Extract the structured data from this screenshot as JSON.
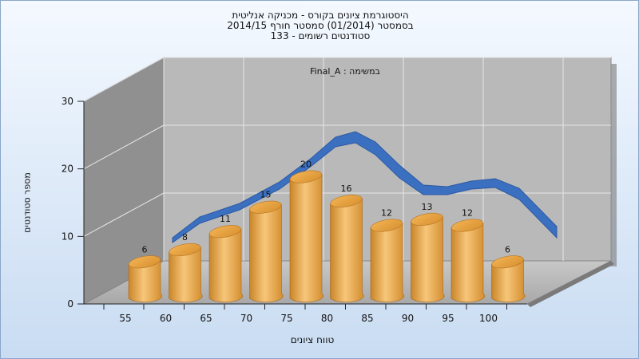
{
  "chart_data": {
    "type": "bar",
    "title_lines": [
      "היסטוגרמת ציונים בקורס - מכניקה אנליטית",
      "בסמסטר  (01/2014)  סמסטר חורף 2014/15",
      "סטודנטים רשומים - 133"
    ],
    "inner_label": "במשימה : Final_A",
    "xlabel": "טווח ציונים",
    "ylabel": "מספר סטודנטים",
    "categories": [
      "55",
      "60",
      "65",
      "70",
      "75",
      "80",
      "85",
      "90",
      "95",
      "100"
    ],
    "values": [
      6,
      8,
      11,
      15,
      20,
      16,
      12,
      13,
      12,
      6
    ],
    "ylim": [
      0,
      30
    ],
    "yticks": [
      0,
      10,
      20,
      30
    ],
    "grid": true,
    "colors": {
      "bar": "#e3a14a",
      "curve": "#3b6fc0",
      "back_wall": "#b8b8b8",
      "side_wall": "#8f8f8f"
    }
  }
}
